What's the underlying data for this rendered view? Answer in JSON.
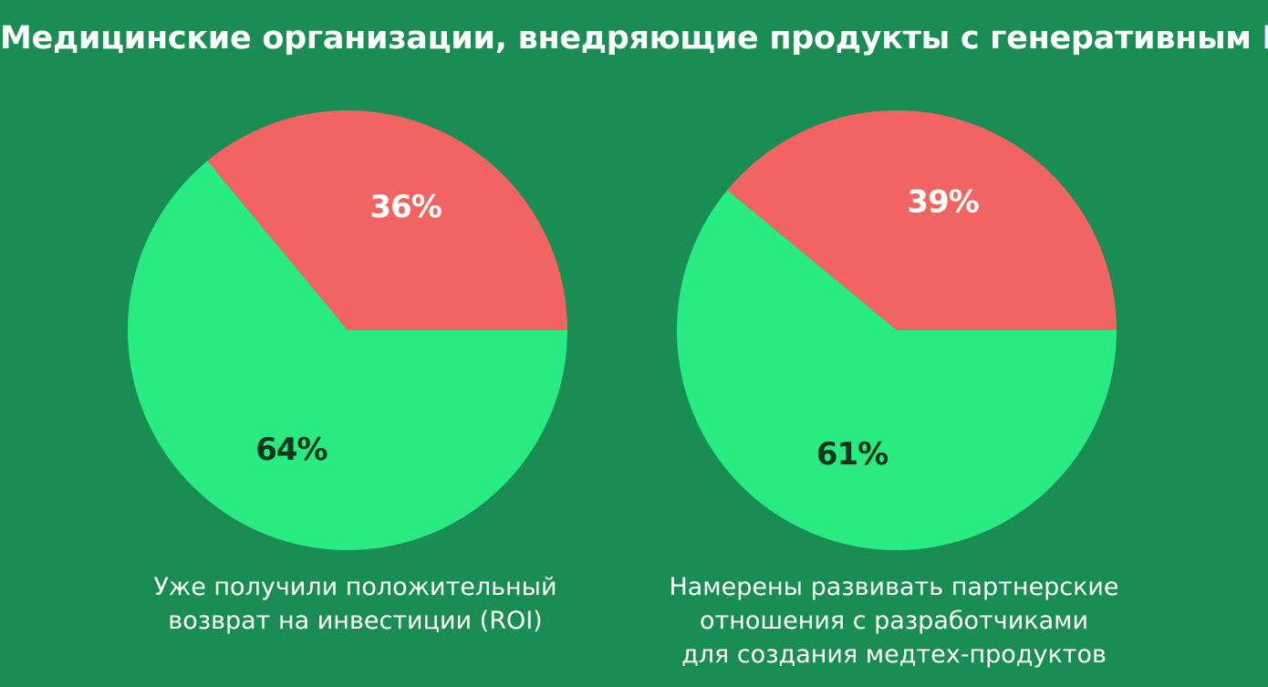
{
  "title": "Медицинские организации, внедряющие продукты с генеративным ИИ",
  "colors": {
    "background": "#1a8d54",
    "slice_red": "#f26462",
    "slice_green": "#28eb81",
    "label_on_red": "#ffffff",
    "label_on_green": "#10361f"
  },
  "chart_data": [
    {
      "type": "pie",
      "caption": "Уже получили положительный\nвозврат на инвестиции (ROI)",
      "slices": [
        {
          "value": 36,
          "label": "36%"
        },
        {
          "value": 64,
          "label": "64%"
        }
      ]
    },
    {
      "type": "pie",
      "caption": "Намерены развивать партнерские\nотношения с разработчиками\nдля создания медтех-продуктов",
      "slices": [
        {
          "value": 39,
          "label": "39%"
        },
        {
          "value": 61,
          "label": "61%"
        }
      ]
    }
  ]
}
